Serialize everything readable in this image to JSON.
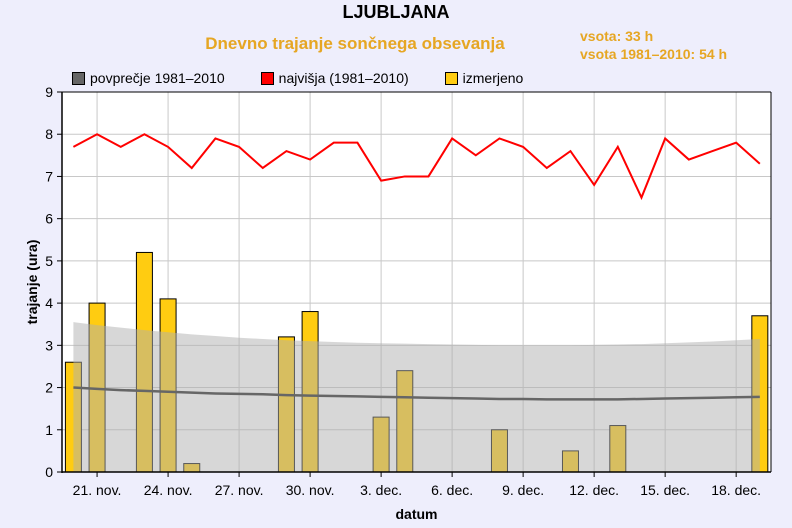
{
  "header": {
    "title": "LJUBLJANA",
    "subtitle": "Dnevno trajanje sončnega obsevanja",
    "sum_current": "vsota: 33 h",
    "sum_normal": "vsota 1981–2010: 54 h"
  },
  "legend": [
    {
      "label": "povprečje 1981–2010",
      "color": "#666666"
    },
    {
      "label": "najvišja (1981–2010)",
      "color": "#ff0000"
    },
    {
      "label": "izmerjeno",
      "color": "#ffcc11"
    }
  ],
  "colors": {
    "background": "#eeeefc",
    "title_accent": "#e6a623",
    "bar_fill": "#ffcc11",
    "bar_fill_in_band": "#d8c068",
    "band_fill": "#d6d6d6",
    "average_line": "#666666",
    "max_line": "#ff0000",
    "grid": "#c8c8c8"
  },
  "chart_data": {
    "type": "bar",
    "title": "LJUBLJANA — Dnevno trajanje sončnega obsevanja",
    "xlabel": "datum",
    "ylabel": "trajanje (ura)",
    "ylim": [
      0,
      9
    ],
    "yticks": [
      0,
      1,
      2,
      3,
      4,
      5,
      6,
      7,
      8,
      9
    ],
    "xtick_labels": [
      "21. nov.",
      "24. nov.",
      "27. nov.",
      "30. nov.",
      "3. dec.",
      "6. dec.",
      "9. dec.",
      "12. dec.",
      "15. dec.",
      "18. dec."
    ],
    "xtick_day_index": [
      1,
      4,
      7,
      10,
      13,
      16,
      19,
      22,
      25,
      28
    ],
    "grid": true,
    "legend_position": "top",
    "categories": [
      "20.11",
      "21.11",
      "22.11",
      "23.11",
      "24.11",
      "25.11",
      "26.11",
      "27.11",
      "28.11",
      "29.11",
      "30.11",
      "1.12",
      "2.12",
      "3.12",
      "4.12",
      "5.12",
      "6.12",
      "7.12",
      "8.12",
      "9.12",
      "10.12",
      "11.12",
      "12.12",
      "13.12",
      "14.12",
      "15.12",
      "16.12",
      "17.12",
      "18.12",
      "19.12"
    ],
    "series": [
      {
        "name": "izmerjeno",
        "type": "bar",
        "values": [
          2.6,
          4.0,
          0,
          5.2,
          4.1,
          0.2,
          0,
          0,
          0,
          3.2,
          3.8,
          0,
          0,
          1.3,
          2.4,
          0,
          0,
          0,
          1.0,
          0,
          0,
          0.5,
          0,
          1.1,
          0,
          0,
          0,
          0,
          0,
          3.7
        ]
      },
      {
        "name": "najvišja (1981–2010)",
        "type": "line",
        "values": [
          7.7,
          8.0,
          7.7,
          8.0,
          7.7,
          7.2,
          7.9,
          7.7,
          7.2,
          7.6,
          7.4,
          7.8,
          7.8,
          6.9,
          7.0,
          7.0,
          7.9,
          7.5,
          7.9,
          7.7,
          7.2,
          7.6,
          6.8,
          7.7,
          6.5,
          7.9,
          7.4,
          7.6,
          7.8,
          7.3
        ]
      },
      {
        "name": "povprečje 1981–2010",
        "type": "line",
        "values": [
          2.0,
          1.97,
          1.94,
          1.92,
          1.9,
          1.88,
          1.86,
          1.85,
          1.84,
          1.82,
          1.81,
          1.8,
          1.79,
          1.78,
          1.77,
          1.76,
          1.75,
          1.74,
          1.73,
          1.73,
          1.72,
          1.72,
          1.72,
          1.72,
          1.73,
          1.74,
          1.75,
          1.76,
          1.77,
          1.78
        ]
      },
      {
        "name": "band upper",
        "type": "area",
        "values": [
          3.55,
          3.48,
          3.42,
          3.36,
          3.31,
          3.26,
          3.22,
          3.18,
          3.15,
          3.12,
          3.1,
          3.08,
          3.06,
          3.05,
          3.04,
          3.03,
          3.02,
          3.01,
          3.0,
          3.0,
          3.0,
          3.0,
          3.01,
          3.02,
          3.03,
          3.05,
          3.07,
          3.09,
          3.12,
          3.15
        ]
      }
    ]
  }
}
